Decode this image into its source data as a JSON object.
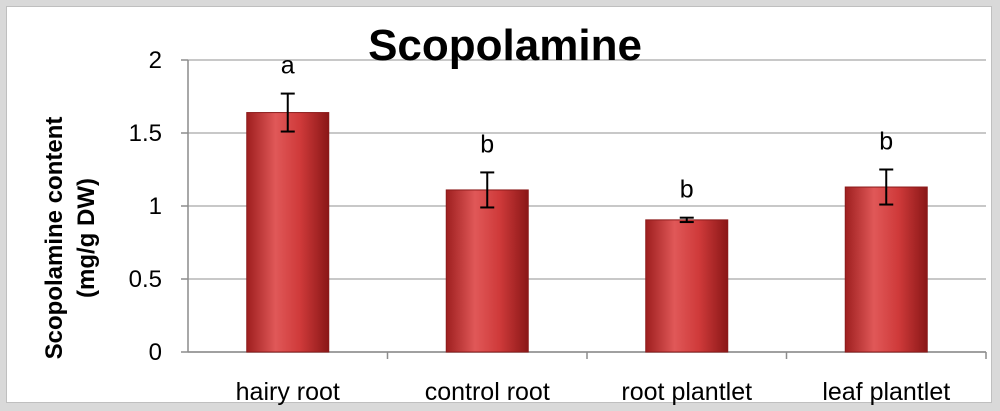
{
  "chart_data": {
    "type": "bar",
    "title": "Scopolamine",
    "ylabel_line1": "Scopolamine  content",
    "ylabel_line2": "(mg/g DW)",
    "xlabel": "",
    "categories": [
      "hairy root",
      "control root",
      "root plantlet",
      "leaf plantlet"
    ],
    "values": [
      1.64,
      1.11,
      0.905,
      1.13
    ],
    "errors": [
      0.13,
      0.12,
      0.015,
      0.12
    ],
    "significance": [
      "a",
      "b",
      "b",
      "b"
    ],
    "ylim": [
      0,
      2
    ],
    "yticks": [
      0,
      0.5,
      1,
      1.5,
      2
    ],
    "ytick_labels": [
      "0",
      "0.5",
      "1",
      "1.5",
      "2"
    ],
    "grid": true,
    "bar_color": "#c93434",
    "bar_edge_color": "#8b1a1a",
    "grid_color": "#b5b5b5"
  }
}
